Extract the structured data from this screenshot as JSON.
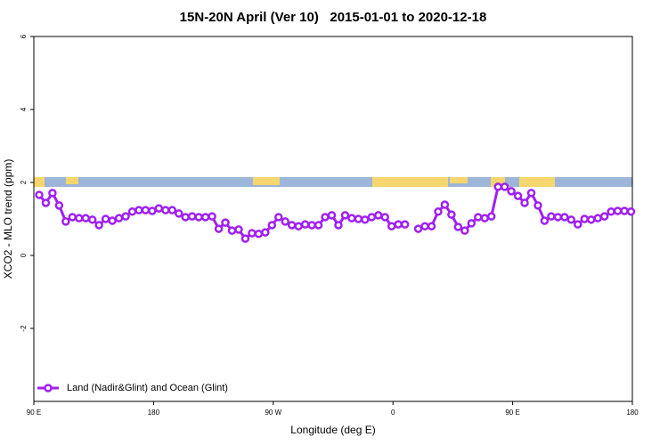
{
  "chart_data": {
    "type": "line",
    "title": "15N-20N April (Ver 10)   2015-01-01 to 2020-12-18",
    "xlabel": "Longitude (deg E)",
    "ylabel": "XCO2 - MLO trend (ppm)",
    "x": [
      94,
      99,
      104,
      109,
      114,
      119,
      124,
      129,
      134,
      139,
      144,
      149,
      154,
      159,
      164,
      169,
      174,
      179,
      184,
      189,
      194,
      199,
      204,
      209,
      214,
      219,
      224,
      229,
      234,
      239,
      244,
      249,
      254,
      259,
      264,
      269,
      274,
      279,
      284,
      289,
      294,
      299,
      304,
      309,
      314,
      319,
      324,
      329,
      334,
      339,
      344,
      349,
      354,
      359,
      364,
      369,
      374,
      379,
      384,
      389,
      394,
      399,
      404,
      409,
      414,
      419,
      424,
      429,
      434,
      439,
      444,
      449,
      454,
      459,
      464,
      469,
      474,
      479,
      484,
      489,
      494,
      499,
      504,
      509,
      514,
      519,
      524,
      529,
      534,
      539
    ],
    "series": [
      {
        "name": "Land (Nadir&Glint) and Ocean (Glint)",
        "color": "#a020f0",
        "values": [
          1.66,
          1.44,
          1.71,
          1.37,
          0.93,
          1.05,
          1.02,
          1.02,
          0.98,
          0.83,
          1.0,
          0.95,
          1.02,
          1.07,
          1.2,
          1.24,
          1.24,
          1.22,
          1.29,
          1.24,
          1.24,
          1.15,
          1.05,
          1.07,
          1.05,
          1.05,
          1.07,
          0.73,
          0.9,
          0.68,
          0.71,
          0.46,
          0.61,
          0.59,
          0.63,
          0.83,
          1.05,
          0.93,
          0.83,
          0.8,
          0.85,
          0.83,
          0.83,
          1.05,
          1.1,
          0.83,
          1.1,
          1.02,
          1.0,
          0.98,
          1.05,
          1.1,
          1.05,
          0.8,
          0.85,
          0.85,
          null,
          0.73,
          0.8,
          0.8,
          1.2,
          1.39,
          1.12,
          0.78,
          0.68,
          0.88,
          1.05,
          1.02,
          1.07,
          1.88,
          1.88,
          1.76,
          1.63,
          1.44,
          1.71,
          1.37,
          0.95,
          1.07,
          1.05,
          1.05,
          0.98,
          0.85,
          1.0,
          0.98,
          1.02,
          1.07,
          1.2,
          1.22,
          1.22,
          1.2
        ]
      }
    ],
    "xlim": [
      90,
      540
    ],
    "xticks": [
      {
        "value": 90,
        "label": "90 E"
      },
      {
        "value": 180,
        "label": "180"
      },
      {
        "value": 270,
        "label": "90 W"
      },
      {
        "value": 360,
        "label": "0"
      },
      {
        "value": 450,
        "label": "90 E"
      },
      {
        "value": 540,
        "label": "180"
      }
    ],
    "ylim": [
      -4,
      6
    ],
    "yticks": [
      -2,
      0,
      2,
      4,
      6
    ],
    "legend": "bottom-left"
  }
}
